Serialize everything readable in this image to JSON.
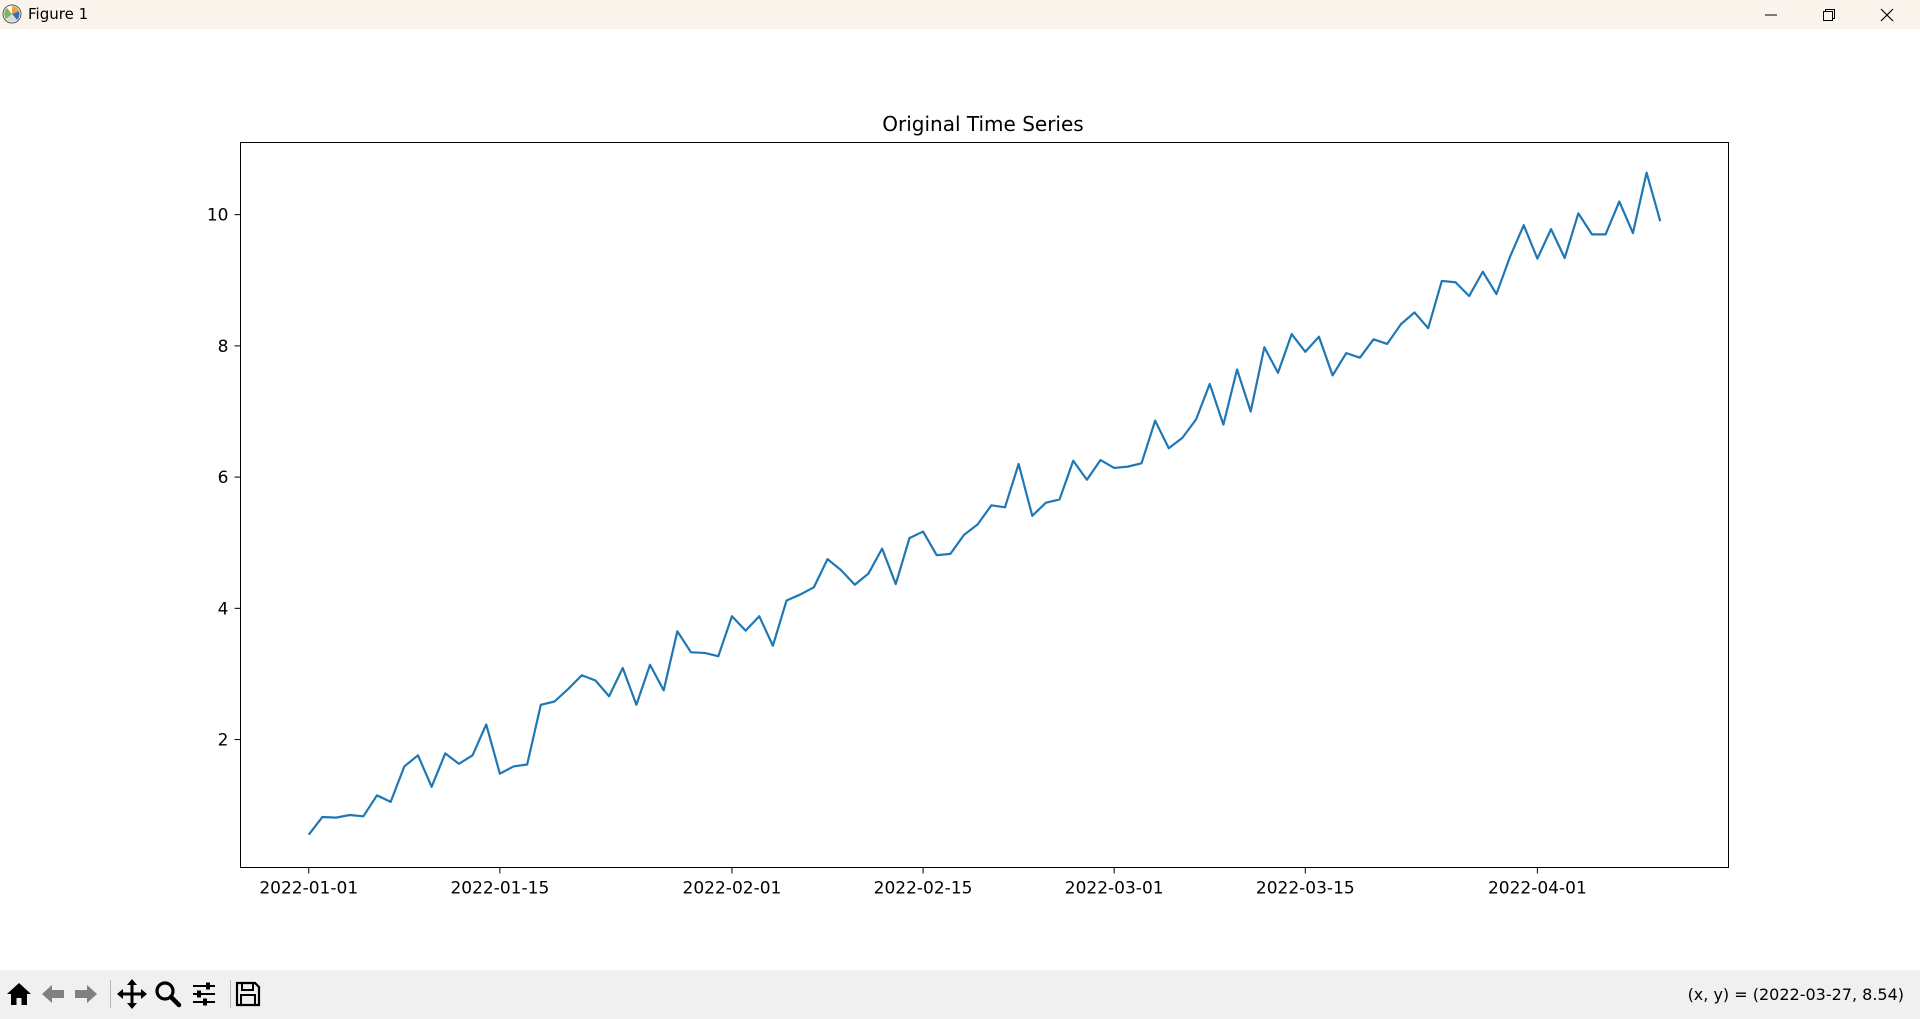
{
  "window": {
    "title": "Figure 1",
    "icon": "matplotlib-icon",
    "controls": [
      "minimize-icon",
      "restore-icon",
      "close-icon"
    ]
  },
  "toolbar": {
    "tools": [
      "home-icon",
      "back-arrow-icon",
      "forward-arrow-icon",
      "pan-icon",
      "zoom-icon",
      "configure-subplots-icon",
      "save-icon"
    ],
    "coordinates": "(x, y) = (2022-03-27, 8.54)"
  },
  "chart_data": {
    "type": "line",
    "title": "Original Time Series",
    "xlabel": "",
    "ylabel": "",
    "x_start": "2022-01-01",
    "x_step": "1 day",
    "xlim": [
      "2021-12-27",
      "2022-04-15"
    ],
    "ylim": [
      0.05,
      11.1
    ],
    "xticks": [
      "2022-01-01",
      "2022-01-15",
      "2022-02-01",
      "2022-02-15",
      "2022-03-01",
      "2022-03-15",
      "2022-04-01"
    ],
    "yticks": [
      2,
      4,
      6,
      8,
      10
    ],
    "grid": false,
    "color": "#1f77b4",
    "series": [
      {
        "values": [
          0.55,
          0.82,
          0.81,
          0.85,
          0.83,
          1.15,
          1.05,
          1.59,
          1.76,
          1.28,
          1.79,
          1.63,
          1.76,
          2.23,
          1.48,
          1.59,
          1.62,
          2.53,
          2.58,
          2.77,
          2.98,
          2.9,
          2.66,
          3.09,
          2.53,
          3.14,
          2.75,
          3.65,
          3.33,
          3.32,
          3.27,
          3.88,
          3.66,
          3.88,
          3.43,
          4.12,
          4.21,
          4.32,
          4.75,
          4.58,
          4.36,
          4.53,
          4.91,
          4.37,
          5.07,
          5.17,
          4.81,
          4.83,
          5.12,
          5.28,
          5.57,
          5.54,
          6.2,
          5.41,
          5.61,
          5.66,
          6.25,
          5.96,
          6.26,
          6.14,
          6.16,
          6.21,
          6.86,
          6.44,
          6.6,
          6.88,
          7.42,
          6.8,
          7.64,
          7.0,
          7.98,
          7.59,
          8.18,
          7.91,
          8.14,
          7.55,
          7.89,
          7.82,
          8.1,
          8.03,
          8.33,
          8.51,
          8.27,
          8.99,
          8.97,
          8.76,
          9.13,
          8.79,
          9.36,
          9.84,
          9.33,
          9.78,
          9.34,
          10.02,
          9.7,
          9.7,
          10.2,
          9.72,
          10.64,
          9.9
        ]
      }
    ]
  }
}
